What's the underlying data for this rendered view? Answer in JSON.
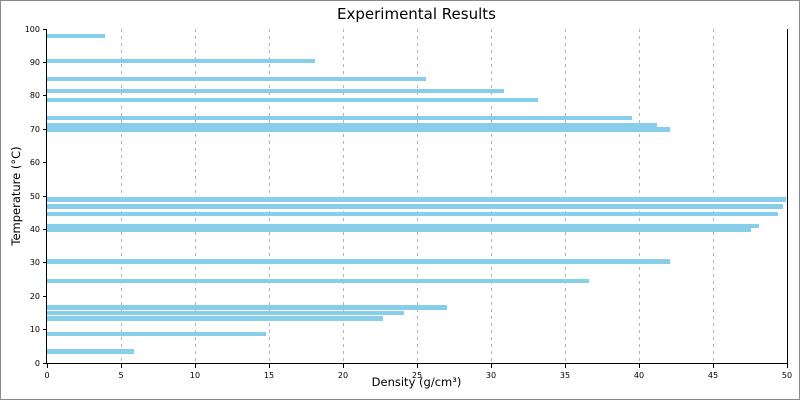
{
  "colors": {
    "background": "#ffffff",
    "frame_border": "#8a8a8a",
    "axis": "#000000",
    "gridline": "#b3b3b3",
    "bar": "#87ceeb"
  },
  "chart_data": {
    "type": "bar",
    "orientation": "horizontal",
    "title": "Experimental Results",
    "xlabel": "Density (g/cm³)",
    "ylabel": "Temperature (°C)",
    "xlim": [
      0,
      50
    ],
    "ylim": [
      0,
      100
    ],
    "x_ticks": [
      0,
      5,
      10,
      15,
      20,
      25,
      30,
      35,
      40,
      45,
      50
    ],
    "y_ticks": [
      0,
      10,
      20,
      30,
      40,
      50,
      60,
      70,
      80,
      90,
      100
    ],
    "grid": {
      "vertical_dashed": true,
      "horizontal": false
    },
    "legend": "none",
    "bar_color": "#87ceeb",
    "bar_thickness_units": 1.3,
    "points": [
      {
        "temperature": 97.9,
        "density": 3.9
      },
      {
        "temperature": 90.4,
        "density": 18.1
      },
      {
        "temperature": 85.0,
        "density": 25.6
      },
      {
        "temperature": 81.4,
        "density": 30.9
      },
      {
        "temperature": 78.7,
        "density": 33.2
      },
      {
        "temperature": 73.3,
        "density": 39.5
      },
      {
        "temperature": 71.2,
        "density": 41.2
      },
      {
        "temperature": 69.9,
        "density": 42.1
      },
      {
        "temperature": 48.9,
        "density": 49.9
      },
      {
        "temperature": 46.8,
        "density": 49.7
      },
      {
        "temperature": 44.7,
        "density": 49.4
      },
      {
        "temperature": 41.0,
        "density": 48.1
      },
      {
        "temperature": 39.8,
        "density": 47.6
      },
      {
        "temperature": 30.4,
        "density": 42.1
      },
      {
        "temperature": 24.6,
        "density": 36.6
      },
      {
        "temperature": 16.6,
        "density": 27.0
      },
      {
        "temperature": 15.0,
        "density": 24.1
      },
      {
        "temperature": 13.3,
        "density": 22.7
      },
      {
        "temperature": 8.6,
        "density": 14.8
      },
      {
        "temperature": 3.5,
        "density": 5.9
      }
    ]
  }
}
